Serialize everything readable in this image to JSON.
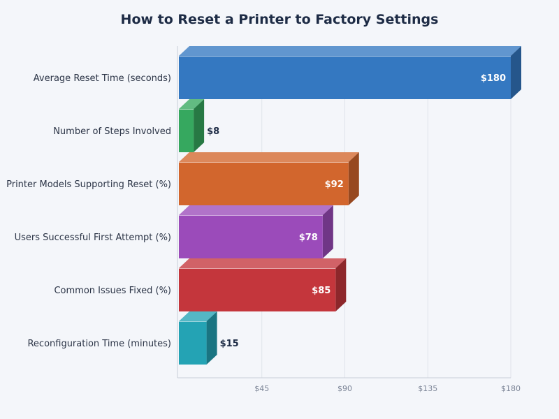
{
  "chart_data": {
    "type": "bar",
    "orientation": "horizontal",
    "title": "How to Reset a Printer to Factory Settings",
    "xlabel": "",
    "ylabel": "",
    "value_prefix": "$",
    "categories": [
      "Average Reset Time (seconds)",
      "Number of Steps Involved",
      "Printer Models Supporting Reset (%)",
      "Users Successful First Attempt (%)",
      "Common Issues Fixed (%)",
      "Reconfiguration Time (minutes)"
    ],
    "values": [
      180,
      8,
      92,
      78,
      85,
      15
    ],
    "colors": [
      "#3478c1",
      "#36a85f",
      "#d2662d",
      "#9b4bba",
      "#c4363c",
      "#24a3b4"
    ],
    "xlim": [
      0,
      180
    ],
    "xticks": [
      45,
      90,
      135,
      180
    ],
    "xtick_labels": [
      "$45",
      "$90",
      "$135",
      "$180"
    ],
    "grid": true,
    "legend": "none"
  }
}
